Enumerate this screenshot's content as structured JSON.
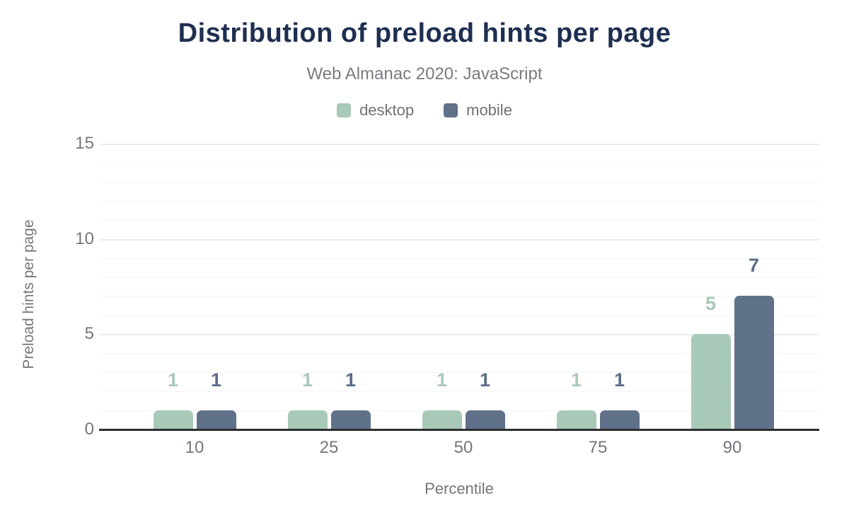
{
  "header": {
    "title": "Distribution of preload hints per page",
    "subtitle": "Web Almanac 2020: JavaScript"
  },
  "legend": {
    "items": [
      {
        "label": "desktop",
        "color": "#a9c9b8"
      },
      {
        "label": "mobile",
        "color": "#60718a"
      }
    ]
  },
  "axes": {
    "x_title": "Percentile",
    "y_title": "Preload hints per page",
    "y_ticks": [
      0,
      5,
      10,
      15
    ]
  },
  "chart_data": {
    "type": "bar",
    "title": "Distribution of preload hints per page",
    "subtitle": "Web Almanac 2020: JavaScript",
    "categories": [
      "10",
      "25",
      "50",
      "75",
      "90"
    ],
    "series": [
      {
        "name": "desktop",
        "color": "#a9c9b8",
        "label_color": "#a9c9b8",
        "values": [
          1,
          1,
          1,
          1,
          5
        ]
      },
      {
        "name": "mobile",
        "color": "#60718a",
        "label_color": "#5b6d87",
        "values": [
          1,
          1,
          1,
          1,
          7
        ]
      }
    ],
    "xlabel": "Percentile",
    "ylabel": "Preload hints per page",
    "ylim": [
      0,
      15
    ],
    "y_ticks": [
      0,
      5,
      10,
      15
    ],
    "grid": "horizontal; minor line every 1 unit, major line every 5 units",
    "legend_position": "top",
    "value_labels": true
  },
  "colors": {
    "background": "#ffffff",
    "title": "#1e2f50",
    "subtitle": "#787b80",
    "axis_text": "#73767c",
    "grid_minor": "#f4f4f6",
    "grid_major": "#ebebee",
    "baseline": "#2e2e2e",
    "desktop": "#a9c9b8",
    "mobile": "#60718a"
  }
}
